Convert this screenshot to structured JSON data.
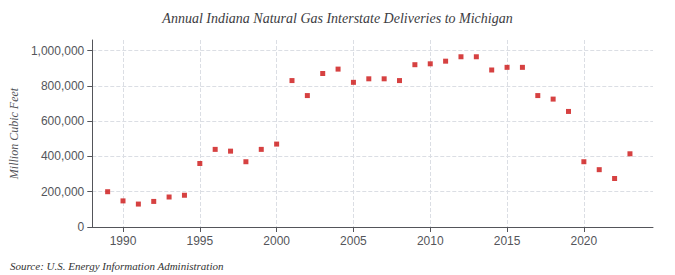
{
  "chart_data": {
    "type": "scatter",
    "title": "Annual Indiana Natural Gas Interstate Deliveries to Michigan",
    "ylabel": "Million Cubic Feet",
    "annotations": [
      "Source: U.S. Energy Information Administration"
    ],
    "x": [
      1989,
      1990,
      1991,
      1992,
      1993,
      1994,
      1995,
      1996,
      1997,
      1998,
      1999,
      2000,
      2001,
      2002,
      2003,
      2004,
      2005,
      2006,
      2007,
      2008,
      2009,
      2010,
      2011,
      2012,
      2013,
      2014,
      2015,
      2016,
      2017,
      2018,
      2019,
      2020,
      2021,
      2022,
      2023
    ],
    "values": [
      200000,
      148000,
      130000,
      145000,
      170000,
      180000,
      360000,
      440000,
      430000,
      370000,
      440000,
      470000,
      830000,
      745000,
      870000,
      895000,
      820000,
      840000,
      840000,
      830000,
      920000,
      925000,
      940000,
      965000,
      965000,
      890000,
      905000,
      905000,
      745000,
      725000,
      655000,
      370000,
      325000,
      275000,
      415000
    ],
    "color": "#cc1111",
    "marker": "square",
    "xlim": [
      1988,
      2024.5
    ],
    "xticks": [
      1990,
      1995,
      2000,
      2005,
      2010,
      2015,
      2020
    ],
    "ylim": [
      0,
      1060000
    ],
    "yticks": [
      0,
      {
        "value": 200000,
        "label": "200,000"
      },
      {
        "value": 400000,
        "label": "400,000"
      },
      {
        "value": 600000,
        "label": "600,000"
      },
      {
        "value": 800000,
        "label": "800,000"
      },
      {
        "value": 1000000,
        "label": "1,000,000"
      }
    ],
    "grid": true
  }
}
